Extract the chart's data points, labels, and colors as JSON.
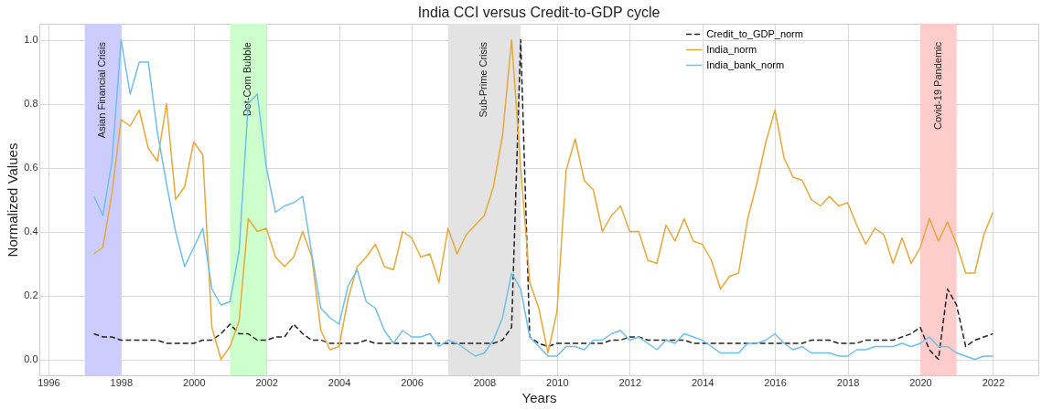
{
  "chart_data": {
    "type": "line",
    "title": "India CCI versus Credit-to-GDP cycle",
    "xlabel": "Years",
    "ylabel": "Normalized Values",
    "x": [
      1997.25,
      1997.5,
      1997.75,
      1998,
      1998.25,
      1998.5,
      1998.75,
      1999,
      1999.25,
      1999.5,
      1999.75,
      2000,
      2000.25,
      2000.5,
      2000.75,
      2001,
      2001.25,
      2001.5,
      2001.75,
      2002,
      2002.25,
      2002.5,
      2002.75,
      2003,
      2003.25,
      2003.5,
      2003.75,
      2004,
      2004.25,
      2004.5,
      2004.75,
      2005,
      2005.25,
      2005.5,
      2005.75,
      2006,
      2006.25,
      2006.5,
      2006.75,
      2007,
      2007.25,
      2007.5,
      2007.75,
      2008,
      2008.25,
      2008.5,
      2008.75,
      2009,
      2009.25,
      2009.5,
      2009.75,
      2010,
      2010.25,
      2010.5,
      2010.75,
      2011,
      2011.25,
      2011.5,
      2011.75,
      2012,
      2012.25,
      2012.5,
      2012.75,
      2013,
      2013.25,
      2013.5,
      2013.75,
      2014,
      2014.25,
      2014.5,
      2014.75,
      2015,
      2015.25,
      2015.5,
      2015.75,
      2016,
      2016.25,
      2016.5,
      2016.75,
      2017,
      2017.25,
      2017.5,
      2017.75,
      2018,
      2018.25,
      2018.5,
      2018.75,
      2019,
      2019.25,
      2019.5,
      2019.75,
      2020,
      2020.25,
      2020.5,
      2020.75,
      2021,
      2021.25,
      2021.5,
      2021.75,
      2022
    ],
    "series": [
      {
        "name": "Credit_to_GDP_norm",
        "color": "#222222",
        "line_style": "dashed",
        "values": [
          0.08,
          0.07,
          0.07,
          0.06,
          0.06,
          0.06,
          0.06,
          0.06,
          0.05,
          0.05,
          0.05,
          0.05,
          0.06,
          0.06,
          0.08,
          0.11,
          0.08,
          0.08,
          0.06,
          0.06,
          0.07,
          0.07,
          0.11,
          0.08,
          0.06,
          0.06,
          0.05,
          0.05,
          0.05,
          0.05,
          0.06,
          0.05,
          0.05,
          0.05,
          0.05,
          0.05,
          0.05,
          0.05,
          0.05,
          0.05,
          0.05,
          0.05,
          0.05,
          0.05,
          0.05,
          0.06,
          0.1,
          1.0,
          0.07,
          0.05,
          0.04,
          0.05,
          0.05,
          0.05,
          0.05,
          0.05,
          0.05,
          0.06,
          0.06,
          0.07,
          0.07,
          0.06,
          0.06,
          0.06,
          0.06,
          0.06,
          0.05,
          0.05,
          0.05,
          0.05,
          0.05,
          0.05,
          0.05,
          0.05,
          0.05,
          0.05,
          0.05,
          0.05,
          0.05,
          0.06,
          0.06,
          0.06,
          0.05,
          0.05,
          0.05,
          0.06,
          0.06,
          0.06,
          0.06,
          0.07,
          0.08,
          0.1,
          0.03,
          0.0,
          0.22,
          0.17,
          0.04,
          0.06,
          0.07,
          0.08
        ]
      },
      {
        "name": "India_norm",
        "color": "#e8a838",
        "line_style": "solid",
        "values": [
          0.33,
          0.35,
          0.52,
          0.75,
          0.73,
          0.78,
          0.66,
          0.62,
          0.8,
          0.5,
          0.54,
          0.68,
          0.64,
          0.1,
          0.0,
          0.04,
          0.12,
          0.44,
          0.4,
          0.41,
          0.32,
          0.29,
          0.32,
          0.4,
          0.32,
          0.09,
          0.03,
          0.04,
          0.19,
          0.29,
          0.32,
          0.36,
          0.29,
          0.28,
          0.4,
          0.38,
          0.32,
          0.33,
          0.24,
          0.41,
          0.33,
          0.39,
          0.42,
          0.45,
          0.54,
          0.7,
          1.0,
          0.6,
          0.24,
          0.16,
          0.02,
          0.15,
          0.59,
          0.69,
          0.56,
          0.53,
          0.4,
          0.45,
          0.48,
          0.4,
          0.4,
          0.31,
          0.3,
          0.42,
          0.37,
          0.44,
          0.37,
          0.36,
          0.31,
          0.22,
          0.26,
          0.27,
          0.44,
          0.55,
          0.68,
          0.78,
          0.63,
          0.57,
          0.56,
          0.5,
          0.48,
          0.51,
          0.48,
          0.49,
          0.42,
          0.36,
          0.41,
          0.39,
          0.3,
          0.38,
          0.3,
          0.35,
          0.44,
          0.37,
          0.43,
          0.36,
          0.27,
          0.27,
          0.39,
          0.46
        ]
      },
      {
        "name": "India_bank_norm",
        "color": "#6ec0ea",
        "line_style": "solid",
        "values": [
          0.51,
          0.45,
          0.62,
          1.0,
          0.83,
          0.93,
          0.93,
          0.71,
          0.55,
          0.4,
          0.29,
          0.35,
          0.41,
          0.22,
          0.17,
          0.18,
          0.34,
          0.8,
          0.83,
          0.6,
          0.46,
          0.48,
          0.49,
          0.51,
          0.33,
          0.16,
          0.13,
          0.11,
          0.23,
          0.28,
          0.18,
          0.16,
          0.09,
          0.05,
          0.09,
          0.07,
          0.07,
          0.08,
          0.04,
          0.06,
          0.05,
          0.03,
          0.01,
          0.02,
          0.06,
          0.13,
          0.27,
          0.22,
          0.07,
          0.04,
          0.01,
          0.01,
          0.04,
          0.04,
          0.03,
          0.06,
          0.06,
          0.08,
          0.09,
          0.06,
          0.07,
          0.05,
          0.03,
          0.06,
          0.05,
          0.08,
          0.07,
          0.06,
          0.04,
          0.02,
          0.02,
          0.02,
          0.05,
          0.05,
          0.06,
          0.08,
          0.05,
          0.03,
          0.04,
          0.02,
          0.02,
          0.02,
          0.01,
          0.01,
          0.03,
          0.03,
          0.04,
          0.04,
          0.04,
          0.05,
          0.04,
          0.05,
          0.07,
          0.04,
          0.04,
          0.02,
          0.01,
          0.0,
          0.01,
          0.01
        ]
      }
    ],
    "bands": [
      {
        "axis": "x",
        "from": 1997,
        "to": 1998,
        "label": "Asian Financial Crisis",
        "color": "#ccccff"
      },
      {
        "axis": "x",
        "from": 2001,
        "to": 2002,
        "label": "Dot-Com Bubble",
        "color": "#ccffcc"
      },
      {
        "axis": "x",
        "from": 2007,
        "to": 2009,
        "label": "Sub-Prime Crisis",
        "color": "#e3e3e3"
      },
      {
        "axis": "x",
        "from": 2020,
        "to": 2021,
        "label": "Covid-19 Pandemic",
        "color": "#ffcccc"
      }
    ],
    "xlim": [
      1995.75,
      2023.25
    ],
    "xticks": [
      1996,
      1998,
      2000,
      2002,
      2004,
      2006,
      2008,
      2010,
      2012,
      2014,
      2016,
      2018,
      2020,
      2022
    ],
    "ylim": [
      -0.05,
      1.05
    ],
    "yticks": [
      {
        "value": 0,
        "label": "0.0"
      },
      {
        "value": 0.2,
        "label": "0.2"
      },
      {
        "value": 0.4,
        "label": "0.4"
      },
      {
        "value": 0.6,
        "label": "0.6"
      },
      {
        "value": 0.8,
        "label": "0.8"
      },
      {
        "value": 1.0,
        "label": "1.0"
      }
    ],
    "grid": true,
    "legend": "top right"
  }
}
